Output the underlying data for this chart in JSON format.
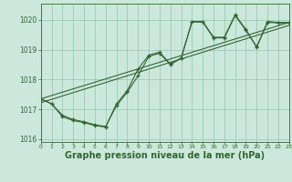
{
  "background_color": "#cce8dc",
  "grid_color": "#99ccb8",
  "line_color": "#336633",
  "xlabel": "Graphe pression niveau de la mer (hPa)",
  "xlabel_fontsize": 7,
  "xlim": [
    0,
    23
  ],
  "ylim": [
    1015.9,
    1020.55
  ],
  "yticks": [
    1016,
    1017,
    1018,
    1019,
    1020
  ],
  "xticks": [
    0,
    1,
    2,
    3,
    4,
    5,
    6,
    7,
    8,
    9,
    10,
    11,
    12,
    13,
    14,
    15,
    16,
    17,
    18,
    19,
    20,
    21,
    22,
    23
  ],
  "line1_y": [
    1017.35,
    1017.18,
    1016.8,
    1016.65,
    1016.58,
    1016.48,
    1016.42,
    1017.12,
    1017.57,
    1018.12,
    1018.78,
    1018.88,
    1018.5,
    1018.72,
    1019.95,
    1019.95,
    1019.42,
    1019.42,
    1020.18,
    1019.68,
    1019.08,
    1019.95,
    1019.92,
    1019.92
  ],
  "line2_y": [
    1017.35,
    1017.18,
    1016.75,
    1016.62,
    1016.55,
    1016.45,
    1016.4,
    1017.18,
    1017.62,
    1018.35,
    1018.82,
    1018.92,
    1018.52,
    1018.72,
    1019.93,
    1019.93,
    1019.4,
    1019.4,
    1020.15,
    1019.65,
    1019.1,
    1019.92,
    1019.9,
    1019.9
  ],
  "trend1_x": [
    0,
    23
  ],
  "trend1_y": [
    1017.35,
    1019.92
  ],
  "trend2_x": [
    0,
    23
  ],
  "trend2_y": [
    1017.22,
    1019.82
  ]
}
